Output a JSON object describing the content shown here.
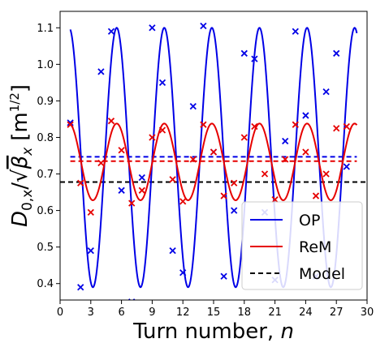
{
  "chart_data": {
    "type": "line",
    "xlabel": "Turn number, ",
    "xlabel_var": "n",
    "ylabel_text": "D",
    "ylabel_sub": "0,x",
    "ylabel_slash": "/",
    "ylabel_sqrt": "√",
    "ylabel_beta": "β",
    "ylabel_beta_sub": "x",
    "ylabel_unit": "[m",
    "ylabel_unit_exp": "1/2",
    "ylabel_unit_close": "]",
    "xlim": [
      0,
      30
    ],
    "ylim": [
      0.355,
      1.145
    ],
    "xticks": [
      0,
      3,
      6,
      9,
      12,
      15,
      18,
      21,
      24,
      27,
      30
    ],
    "yticks": [
      0.4,
      0.5,
      0.6,
      0.7,
      0.8,
      0.9,
      1.0,
      1.1
    ],
    "grid": false,
    "legend_position": "bottom-right",
    "series": [
      {
        "name": "OP",
        "color": "#0000e6",
        "style": "solid",
        "marker": "x",
        "model_curve": {
          "mean": 0.745,
          "amplitude": 0.355,
          "tune_fraction": 0.215,
          "phase_turn": 0.88
        },
        "points": [
          {
            "x": 1,
            "y": 0.84
          },
          {
            "x": 2,
            "y": 0.39
          },
          {
            "x": 3,
            "y": 0.49
          },
          {
            "x": 4,
            "y": 0.98
          },
          {
            "x": 5,
            "y": 1.09
          },
          {
            "x": 6,
            "y": 0.655
          },
          {
            "x": 7,
            "y": 0.35
          },
          {
            "x": 8,
            "y": 0.69
          },
          {
            "x": 9,
            "y": 1.1
          },
          {
            "x": 10,
            "y": 0.95
          },
          {
            "x": 11,
            "y": 0.49
          },
          {
            "x": 12,
            "y": 0.43
          },
          {
            "x": 13,
            "y": 0.885
          },
          {
            "x": 14,
            "y": 1.105
          },
          {
            "x": 15,
            "y": 0.76
          },
          {
            "x": 16,
            "y": 0.42
          },
          {
            "x": 17,
            "y": 0.6
          },
          {
            "x": 18,
            "y": 1.03
          },
          {
            "x": 19,
            "y": 1.015
          },
          {
            "x": 20,
            "y": 0.595
          },
          {
            "x": 21,
            "y": 0.41
          },
          {
            "x": 22,
            "y": 0.79
          },
          {
            "x": 23,
            "y": 1.09
          },
          {
            "x": 24,
            "y": 0.86
          },
          {
            "x": 25,
            "y": 0.42
          },
          {
            "x": 26,
            "y": 0.925
          },
          {
            "x": 27,
            "y": 1.03
          },
          {
            "x": 28,
            "y": 0.72
          }
        ],
        "mean_line": 0.747
      },
      {
        "name": "ReM",
        "color": "#e60000",
        "style": "solid",
        "marker": "x",
        "model_curve": {
          "mean": 0.733,
          "amplitude": 0.105,
          "tune_fraction": 0.215,
          "phase_turn": 0.88
        },
        "points": [
          {
            "x": 1,
            "y": 0.835
          },
          {
            "x": 2,
            "y": 0.675
          },
          {
            "x": 3,
            "y": 0.595
          },
          {
            "x": 4,
            "y": 0.73
          },
          {
            "x": 5,
            "y": 0.845
          },
          {
            "x": 6,
            "y": 0.765
          },
          {
            "x": 7,
            "y": 0.62
          },
          {
            "x": 8,
            "y": 0.655
          },
          {
            "x": 9,
            "y": 0.8
          },
          {
            "x": 10,
            "y": 0.82
          },
          {
            "x": 11,
            "y": 0.685
          },
          {
            "x": 12,
            "y": 0.625
          },
          {
            "x": 13,
            "y": 0.74
          },
          {
            "x": 14,
            "y": 0.835
          },
          {
            "x": 15,
            "y": 0.76
          },
          {
            "x": 16,
            "y": 0.64
          },
          {
            "x": 17,
            "y": 0.675
          },
          {
            "x": 18,
            "y": 0.8
          },
          {
            "x": 19,
            "y": 0.83
          },
          {
            "x": 20,
            "y": 0.7
          },
          {
            "x": 21,
            "y": 0.63
          },
          {
            "x": 22,
            "y": 0.74
          },
          {
            "x": 23,
            "y": 0.835
          },
          {
            "x": 24,
            "y": 0.76
          },
          {
            "x": 25,
            "y": 0.64
          },
          {
            "x": 26,
            "y": 0.7
          },
          {
            "x": 27,
            "y": 0.825
          },
          {
            "x": 28,
            "y": 0.83
          }
        ],
        "mean_line": 0.735
      },
      {
        "name": "Model",
        "color": "#000000",
        "style": "dashed",
        "value": 0.678
      }
    ]
  }
}
